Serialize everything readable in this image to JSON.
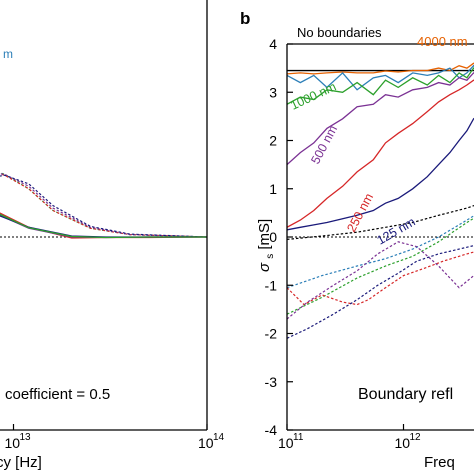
{
  "chart_data": [
    {
      "panel": "a",
      "type": "line",
      "x_scale": "log",
      "xlim": [
        1000000000000.0,
        100000000000000.0
      ],
      "xlabel": "Frequency [Hz]",
      "xlabel_visible": "cy [Hz]",
      "x_ticks": [
        {
          "value": 10000000000000.0,
          "label": "10",
          "exp": "13"
        },
        {
          "value": 100000000000000.0,
          "label": "10",
          "exp": "14"
        }
      ],
      "ylim": [
        -4,
        4
      ],
      "grid": false,
      "legend_fragment": {
        "text": "m",
        "color": "#2c7fb8"
      },
      "annotation": "coefficient = 0.5",
      "zero_line": true,
      "solid_series": [
        {
          "color": "#d62728",
          "x": [
            2000000000000.0,
            3000000000000.0,
            5000000000000.0,
            8000000000000.0,
            12000000000000.0,
            20000000000000.0,
            30000000000000.0,
            50000000000000.0,
            100000000000000.0
          ],
          "y": [
            2.35,
            1.9,
            1.15,
            0.55,
            0.2,
            -0.02,
            -0.01,
            -0.01,
            0.0
          ]
        },
        {
          "color": "#7b3294",
          "x": [
            2000000000000.0,
            3000000000000.0,
            5000000000000.0,
            8000000000000.0,
            12000000000000.0,
            20000000000000.0,
            30000000000000.0,
            50000000000000.0,
            100000000000000.0
          ],
          "y": [
            2.3,
            1.85,
            1.1,
            0.5,
            0.18,
            0.0,
            -0.01,
            0.0,
            0.0
          ]
        },
        {
          "color": "#1a1a7a",
          "x": [
            2000000000000.0,
            3000000000000.0,
            5000000000000.0,
            8000000000000.0,
            12000000000000.0,
            20000000000000.0,
            30000000000000.0,
            50000000000000.0,
            100000000000000.0
          ],
          "y": [
            2.3,
            1.8,
            1.05,
            0.48,
            0.2,
            0.02,
            0.0,
            0.0,
            0.0
          ]
        },
        {
          "color": "#2ca02c",
          "x": [
            2000000000000.0,
            3000000000000.0,
            5000000000000.0,
            8000000000000.0,
            12000000000000.0,
            20000000000000.0,
            30000000000000.0,
            50000000000000.0,
            100000000000000.0
          ],
          "y": [
            2.3,
            1.87,
            1.12,
            0.52,
            0.19,
            0.01,
            -0.01,
            0.0,
            0.0
          ]
        }
      ],
      "dashed_series": [
        {
          "color": "#2ca02c",
          "x": [
            2000000000000.0,
            3000000000000.0,
            5000000000000.0,
            7000000000000.0,
            9000000000000.0,
            12000000000000.0,
            16000000000000.0,
            25000000000000.0,
            40000000000000.0,
            100000000000000.0
          ],
          "y": [
            1.25,
            1.45,
            1.5,
            1.45,
            1.3,
            1.0,
            0.55,
            0.18,
            0.05,
            0.0
          ]
        },
        {
          "color": "#d62728",
          "x": [
            2000000000000.0,
            3000000000000.0,
            5000000000000.0,
            7000000000000.0,
            9000000000000.0,
            12000000000000.0,
            16000000000000.0,
            25000000000000.0,
            40000000000000.0,
            100000000000000.0
          ],
          "y": [
            1.15,
            1.35,
            1.45,
            1.4,
            1.28,
            1.0,
            0.55,
            0.18,
            0.05,
            0.0
          ]
        },
        {
          "color": "#7b3294",
          "x": [
            2000000000000.0,
            3000000000000.0,
            5000000000000.0,
            7000000000000.0,
            9000000000000.0,
            12000000000000.0,
            16000000000000.0,
            25000000000000.0,
            40000000000000.0,
            100000000000000.0
          ],
          "y": [
            0.85,
            1.1,
            1.3,
            1.35,
            1.3,
            1.05,
            0.6,
            0.2,
            0.05,
            0.0
          ]
        },
        {
          "color": "#1a1a7a",
          "x": [
            2000000000000.0,
            3000000000000.0,
            5000000000000.0,
            7000000000000.0,
            9000000000000.0,
            12000000000000.0,
            16000000000000.0,
            25000000000000.0,
            40000000000000.0,
            100000000000000.0
          ],
          "y": [
            0.55,
            0.75,
            1.0,
            1.2,
            1.28,
            1.1,
            0.65,
            0.22,
            0.06,
            0.0
          ]
        }
      ]
    },
    {
      "panel": "b",
      "type": "line",
      "x_scale": "log",
      "xlim": [
        100000000000.0,
        10000000000000.0
      ],
      "xlabel": "Frequency [Hz]",
      "xlabel_visible": "Freq",
      "x_ticks": [
        {
          "value": 100000000000.0,
          "label": "10",
          "exp": "11"
        },
        {
          "value": 1000000000000.0,
          "label": "10",
          "exp": "12"
        }
      ],
      "ylabel": "σs [mS]",
      "ylabel_main": "σ",
      "ylabel_sub": "s",
      "ylabel_unit": " [mS]",
      "ylim": [
        -4,
        4
      ],
      "y_ticks": [
        -4,
        -3,
        -2,
        -1,
        0,
        1,
        2,
        3,
        4
      ],
      "grid": false,
      "zero_line": true,
      "no_boundaries_value": 3.45,
      "annotation": "Boundary refl",
      "labels": {
        "no_boundaries": "No boundaries",
        "nm4000": "4000 nm",
        "nm1000": "1000 nm",
        "nm500": "500 nm",
        "nm250": "250 nm",
        "nm125": "125 nm"
      },
      "solid_series": [
        {
          "name": "4000 nm",
          "color": "#e66101",
          "x": [
            100000000000.0,
            130000000000.0,
            170000000000.0,
            220000000000.0,
            300000000000.0,
            400000000000.0,
            550000000000.0,
            700000000000.0,
            900000000000.0,
            1200000000000.0,
            1600000000000.0,
            2000000000000.0,
            2500000000000.0,
            3000000000000.0,
            3500000000000.0,
            4000000000000.0,
            5000000000000.0,
            6000000000000.0,
            7000000000000.0
          ],
          "y": [
            3.38,
            3.4,
            3.38,
            3.4,
            3.42,
            3.4,
            3.4,
            3.44,
            3.42,
            3.45,
            3.45,
            3.5,
            3.45,
            3.55,
            3.5,
            3.6,
            3.5,
            3.55,
            3.45
          ]
        },
        {
          "name": "1000 nm",
          "color": "#2c7fb8",
          "x": [
            100000000000.0,
            130000000000.0,
            170000000000.0,
            220000000000.0,
            300000000000.0,
            400000000000.0,
            550000000000.0,
            700000000000.0,
            900000000000.0,
            1200000000000.0,
            1600000000000.0,
            2000000000000.0,
            2500000000000.0,
            3000000000000.0,
            3500000000000.0,
            4000000000000.0,
            5000000000000.0,
            6000000000000.0
          ],
          "y": [
            3.35,
            3.2,
            3.35,
            3.1,
            3.4,
            3.05,
            3.3,
            3.35,
            3.2,
            3.4,
            3.35,
            3.4,
            3.5,
            3.3,
            3.4,
            3.55,
            3.35,
            3.0
          ]
        },
        {
          "name": "1000 nm",
          "color": "#2ca02c",
          "x": [
            100000000000.0,
            130000000000.0,
            170000000000.0,
            220000000000.0,
            300000000000.0,
            400000000000.0,
            550000000000.0,
            700000000000.0,
            900000000000.0,
            1200000000000.0,
            1600000000000.0,
            2000000000000.0,
            2500000000000.0,
            3000000000000.0,
            3500000000000.0,
            4000000000000.0,
            5000000000000.0,
            6000000000000.0
          ],
          "y": [
            2.75,
            2.9,
            2.85,
            3.05,
            3.0,
            3.2,
            2.95,
            3.25,
            3.1,
            3.3,
            3.15,
            3.35,
            3.2,
            3.4,
            3.3,
            3.5,
            3.3,
            3.1
          ]
        },
        {
          "name": "500 nm",
          "color": "#7b3294",
          "x": [
            100000000000.0,
            130000000000.0,
            170000000000.0,
            220000000000.0,
            300000000000.0,
            400000000000.0,
            550000000000.0,
            700000000000.0,
            900000000000.0,
            1200000000000.0,
            1600000000000.0,
            2000000000000.0,
            2500000000000.0,
            3000000000000.0,
            3500000000000.0,
            4000000000000.0,
            5000000000000.0,
            6000000000000.0
          ],
          "y": [
            1.5,
            1.75,
            1.95,
            2.25,
            2.45,
            2.7,
            2.75,
            2.95,
            2.9,
            3.05,
            3.1,
            3.2,
            3.15,
            3.3,
            3.25,
            3.4,
            3.3,
            3.15
          ]
        },
        {
          "name": "250 nm",
          "color": "#d62728",
          "x": [
            100000000000.0,
            130000000000.0,
            170000000000.0,
            220000000000.0,
            300000000000.0,
            400000000000.0,
            550000000000.0,
            700000000000.0,
            900000000000.0,
            1200000000000.0,
            1600000000000.0,
            2000000000000.0,
            2500000000000.0,
            3000000000000.0,
            3500000000000.0,
            4000000000000.0,
            5000000000000.0,
            6000000000000.0
          ],
          "y": [
            0.2,
            0.35,
            0.55,
            0.8,
            1.05,
            1.35,
            1.6,
            1.95,
            2.15,
            2.35,
            2.6,
            2.8,
            2.95,
            3.05,
            3.15,
            3.25,
            3.2,
            3.1
          ]
        },
        {
          "name": "125 nm",
          "color": "#1a1a7a",
          "x": [
            100000000000.0,
            130000000000.0,
            170000000000.0,
            220000000000.0,
            300000000000.0,
            400000000000.0,
            550000000000.0,
            700000000000.0,
            900000000000.0,
            1200000000000.0,
            1600000000000.0,
            2000000000000.0,
            2500000000000.0,
            3000000000000.0,
            3500000000000.0,
            4000000000000.0,
            5000000000000.0,
            6000000000000.0
          ],
          "y": [
            0.15,
            0.2,
            0.25,
            0.3,
            0.38,
            0.45,
            0.55,
            0.7,
            0.8,
            1.0,
            1.25,
            1.5,
            1.75,
            2.0,
            2.2,
            2.45,
            2.6,
            2.75
          ]
        }
      ],
      "dashed_series": [
        {
          "color": "#000000",
          "x": [
            100000000000.0,
            200000000000.0,
            400000000000.0,
            700000000000.0,
            1200000000000.0,
            2000000000000.0,
            3500000000000.0,
            6000000000000.0
          ],
          "y": [
            -0.05,
            0.02,
            0.1,
            0.2,
            0.3,
            0.45,
            0.6,
            0.8
          ]
        },
        {
          "color": "#2c7fb8",
          "x": [
            100000000000.0,
            200000000000.0,
            400000000000.0,
            700000000000.0,
            1200000000000.0,
            2000000000000.0,
            3500000000000.0,
            6000000000000.0
          ],
          "y": [
            -1.05,
            -0.8,
            -0.6,
            -0.45,
            -0.25,
            0.0,
            0.35,
            0.7
          ]
        },
        {
          "color": "#2ca02c",
          "x": [
            100000000000.0,
            200000000000.0,
            400000000000.0,
            700000000000.0,
            1200000000000.0,
            2000000000000.0,
            3500000000000.0,
            6000000000000.0
          ],
          "y": [
            -1.6,
            -1.25,
            -0.85,
            -0.6,
            -0.4,
            -0.1,
            0.3,
            0.65
          ]
        },
        {
          "color": "#d62728",
          "x": [
            100000000000.0,
            140000000000.0,
            200000000000.0,
            300000000000.0,
            400000000000.0,
            500000000000.0,
            700000000000.0,
            1000000000000.0,
            1500000000000.0,
            2200000000000.0,
            3500000000000.0,
            6000000000000.0
          ],
          "y": [
            -1.05,
            -1.4,
            -1.2,
            -1.35,
            -1.4,
            -1.3,
            -1.05,
            -0.8,
            -0.65,
            -0.5,
            -0.35,
            -0.2
          ]
        },
        {
          "color": "#7b3294",
          "x": [
            100000000000.0,
            150000000000.0,
            250000000000.0,
            400000000000.0,
            600000000000.0,
            900000000000.0,
            1300000000000.0,
            2000000000000.0,
            3000000000000.0,
            4500000000000.0,
            6000000000000.0
          ],
          "y": [
            -1.7,
            -1.35,
            -1.0,
            -0.7,
            -0.35,
            -0.1,
            -0.2,
            -0.6,
            -1.05,
            -0.7,
            -0.4
          ]
        },
        {
          "color": "#1a1a7a",
          "x": [
            100000000000.0,
            150000000000.0,
            250000000000.0,
            400000000000.0,
            600000000000.0,
            900000000000.0,
            1300000000000.0,
            2000000000000.0,
            3000000000000.0,
            4500000000000.0,
            6000000000000.0
          ],
          "y": [
            -2.1,
            -1.9,
            -1.6,
            -1.3,
            -1.0,
            -0.75,
            -0.5,
            -0.35,
            -0.25,
            -0.15,
            -0.05
          ]
        }
      ]
    }
  ],
  "panel_labels": {
    "b": "b"
  }
}
